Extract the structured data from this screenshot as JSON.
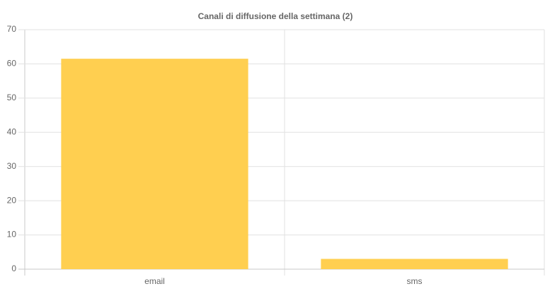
{
  "chart_data": {
    "type": "bar",
    "title": "Canali di diffusione della settimana (2)",
    "categories": [
      "email",
      "sms"
    ],
    "values": [
      61.5,
      3
    ],
    "color": "#ffcf50",
    "ylim": [
      0,
      70
    ],
    "yticks": [
      0,
      10,
      20,
      30,
      40,
      50,
      60,
      70
    ],
    "grid": true
  }
}
